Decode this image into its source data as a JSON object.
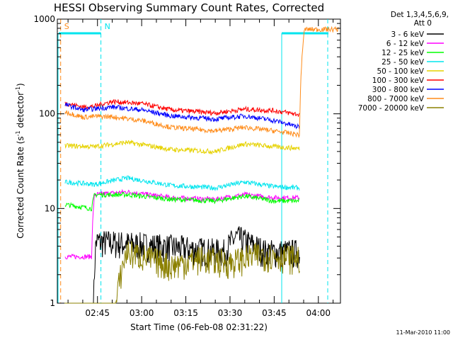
{
  "chart_data": {
    "type": "line",
    "title": "HESSI Observing Summary Count Rates, Corrected",
    "xlabel": "Start Time (06-Feb-08 02:31:22)",
    "ylabel_main": "Corrected Count Rate (s",
    "ylabel_sup1": "-1",
    "ylabel_mid": " detector",
    "ylabel_sup2": "-1",
    "ylabel_end": ")",
    "yscale": "log",
    "ylim": [
      1,
      1000
    ],
    "xlim": [
      "02:31:22",
      "04:07:30"
    ],
    "x_ticks": [
      "02:45",
      "03:00",
      "03:15",
      "03:30",
      "03:45",
      "04:00"
    ],
    "y_ticks": [
      "1",
      "10",
      "100",
      "1000"
    ],
    "legend_header": [
      "Det 1,3,4,5,6,9,",
      "Att 0"
    ],
    "legend_position": "right",
    "annotations": [
      {
        "label": "S",
        "time": "02:32:30",
        "color": "#ff8c1a"
      },
      {
        "label": "N",
        "time": "02:46:10",
        "color": "#00e5ee"
      }
    ],
    "timestamp": "11-Mar-2010 11:00",
    "series": [
      {
        "name": "3 - 6 keV",
        "color": "#000000",
        "points": [
          [
            "02:33:00",
            0
          ],
          [
            "02:43:30",
            0
          ],
          [
            "02:44:30",
            4.5
          ],
          [
            "03:28:00",
            3.5
          ],
          [
            "03:32:00",
            5
          ],
          [
            "03:42:00",
            3.5
          ],
          [
            "03:53:40",
            3.5
          ]
        ]
      },
      {
        "name": "6 - 12 keV",
        "color": "#ff00ff",
        "points": [
          [
            "02:34:00",
            3.1
          ],
          [
            "02:43:00",
            3.1
          ],
          [
            "02:44:00",
            14
          ],
          [
            "02:55:00",
            15
          ],
          [
            "03:10:00",
            13
          ],
          [
            "03:25:00",
            12.5
          ],
          [
            "03:35:00",
            14
          ],
          [
            "03:45:00",
            13
          ],
          [
            "03:53:40",
            13
          ]
        ]
      },
      {
        "name": "12 - 25 keV",
        "color": "#00ff00",
        "points": [
          [
            "02:34:00",
            11
          ],
          [
            "02:43:00",
            10
          ],
          [
            "02:44:00",
            14
          ],
          [
            "02:55:00",
            14
          ],
          [
            "03:10:00",
            12.5
          ],
          [
            "03:25:00",
            12
          ],
          [
            "03:35:00",
            13.5
          ],
          [
            "03:45:00",
            12
          ],
          [
            "03:53:40",
            12
          ]
        ]
      },
      {
        "name": "25 - 50 keV",
        "color": "#00e5ee",
        "points": [
          [
            "02:34:00",
            19
          ],
          [
            "02:44:00",
            18
          ],
          [
            "02:55:00",
            21
          ],
          [
            "03:10:00",
            17.5
          ],
          [
            "03:25:00",
            16.5
          ],
          [
            "03:35:00",
            19
          ],
          [
            "03:45:00",
            17
          ],
          [
            "03:53:40",
            16.5
          ]
        ]
      },
      {
        "name": "50 - 100 keV",
        "color": "#e6d200",
        "points": [
          [
            "02:34:00",
            46
          ],
          [
            "02:44:00",
            45
          ],
          [
            "02:55:00",
            50
          ],
          [
            "03:10:00",
            42
          ],
          [
            "03:25:00",
            40
          ],
          [
            "03:35:00",
            48
          ],
          [
            "03:45:00",
            45
          ],
          [
            "03:53:40",
            43
          ]
        ]
      },
      {
        "name": "100 - 300 keV",
        "color": "#ff0000",
        "points": [
          [
            "02:34:00",
            130
          ],
          [
            "02:40:00",
            118
          ],
          [
            "02:44:00",
            120
          ],
          [
            "02:50:00",
            135
          ],
          [
            "03:00:00",
            128
          ],
          [
            "03:10:00",
            110
          ],
          [
            "03:25:00",
            102
          ],
          [
            "03:35:00",
            112
          ],
          [
            "03:45:00",
            108
          ],
          [
            "03:53:40",
            98
          ]
        ]
      },
      {
        "name": "300 - 800 keV",
        "color": "#0000ff",
        "points": [
          [
            "02:34:00",
            125
          ],
          [
            "02:40:00",
            110
          ],
          [
            "02:44:00",
            113
          ],
          [
            "02:50:00",
            118
          ],
          [
            "03:00:00",
            110
          ],
          [
            "03:10:00",
            95
          ],
          [
            "03:25:00",
            88
          ],
          [
            "03:35:00",
            95
          ],
          [
            "03:45:00",
            85
          ],
          [
            "03:53:40",
            72
          ]
        ]
      },
      {
        "name": "800 - 7000 keV",
        "color": "#ff8c1a",
        "points": [
          [
            "02:34:00",
            105
          ],
          [
            "02:40:00",
            92
          ],
          [
            "02:44:00",
            94
          ],
          [
            "02:50:00",
            93
          ],
          [
            "03:00:00",
            85
          ],
          [
            "03:10:00",
            72
          ],
          [
            "03:25:00",
            66
          ],
          [
            "03:35:00",
            72
          ],
          [
            "03:45:00",
            66
          ],
          [
            "03:53:40",
            60
          ],
          [
            "03:55:20",
            780
          ],
          [
            "04:07:00",
            780
          ]
        ]
      },
      {
        "name": "7000 - 20000 keV",
        "color": "#8b8000",
        "points": [
          [
            "02:33:00",
            0
          ],
          [
            "02:50:00",
            0
          ],
          [
            "02:55:00",
            3.5
          ],
          [
            "03:10:00",
            2.5
          ],
          [
            "03:20:00",
            3.0
          ],
          [
            "03:30:00",
            2.7
          ],
          [
            "03:40:00",
            3.3
          ],
          [
            "03:53:40",
            3.0
          ]
        ]
      }
    ]
  }
}
